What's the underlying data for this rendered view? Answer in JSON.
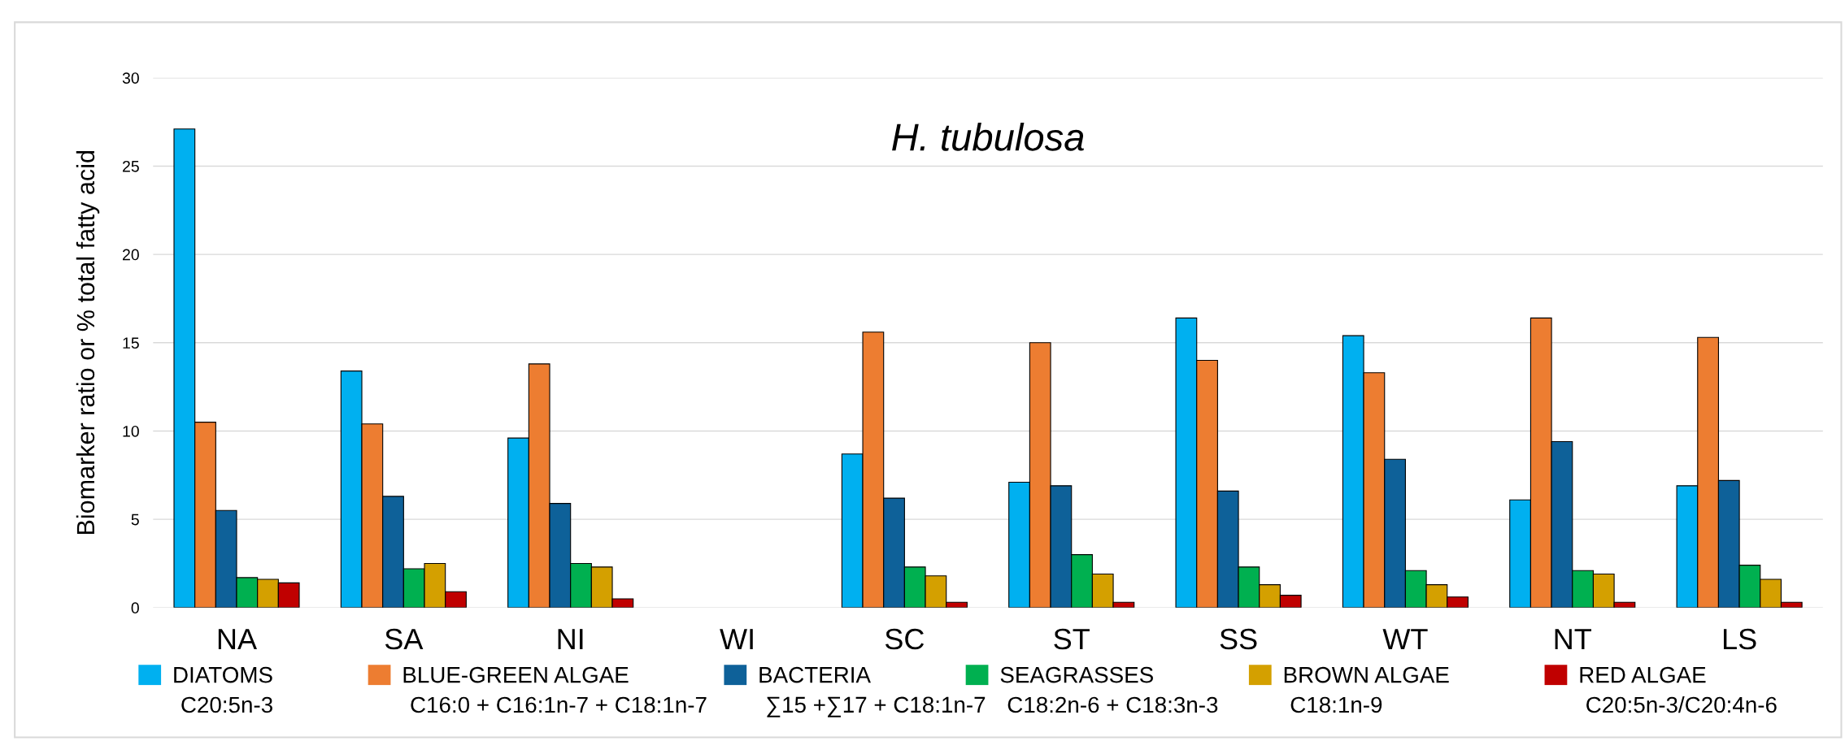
{
  "chart_data": {
    "type": "bar",
    "title": "H. tubulosa",
    "ylabel": "Biomarker ratio or % total fatty acid",
    "categories": [
      "NA",
      "SA",
      "NI",
      "WI",
      "SC",
      "ST",
      "SS",
      "WT",
      "NT",
      "LS"
    ],
    "series": [
      {
        "name": "DIATOMS",
        "color": "#00b0f0",
        "values": [
          27.1,
          13.4,
          9.6,
          null,
          8.7,
          7.1,
          16.4,
          15.4,
          6.1,
          6.9
        ]
      },
      {
        "name": "BLUE-GREEN ALGAE",
        "color": "#ed7d31",
        "values": [
          10.5,
          10.4,
          13.8,
          null,
          15.6,
          15.0,
          14.0,
          13.3,
          16.4,
          15.3
        ]
      },
      {
        "name": "BACTERIA",
        "color": "#0e6199",
        "values": [
          5.5,
          6.3,
          5.9,
          null,
          6.2,
          6.9,
          6.6,
          8.4,
          9.4,
          7.2
        ]
      },
      {
        "name": "SEAGRASSES",
        "color": "#00b050",
        "values": [
          1.7,
          2.2,
          2.5,
          null,
          2.3,
          3.0,
          2.3,
          2.1,
          2.1,
          2.4
        ]
      },
      {
        "name": "BROWN ALGAE",
        "color": "#d4a000",
        "values": [
          1.6,
          2.5,
          2.3,
          null,
          1.8,
          1.9,
          1.3,
          1.3,
          1.9,
          1.6
        ]
      },
      {
        "name": "RED ALGAE",
        "color": "#c00000",
        "values": [
          1.4,
          0.9,
          0.5,
          null,
          0.3,
          0.3,
          0.7,
          0.6,
          0.3,
          0.3
        ]
      }
    ],
    "annotations": [
      "C20:5n-3",
      "C16:0 + C16:1n-7 + C18:1n-7",
      "∑15 +∑17 + C18:1n-7",
      "C18:2n-6 + C18:3n-3",
      "C18:1n-9",
      "C20:5n-3/C20:4n-6"
    ],
    "ylim": [
      0,
      30
    ],
    "yticks": [
      0,
      5,
      10,
      15,
      20,
      25,
      30
    ],
    "grid": "y",
    "legend": "bottom"
  }
}
